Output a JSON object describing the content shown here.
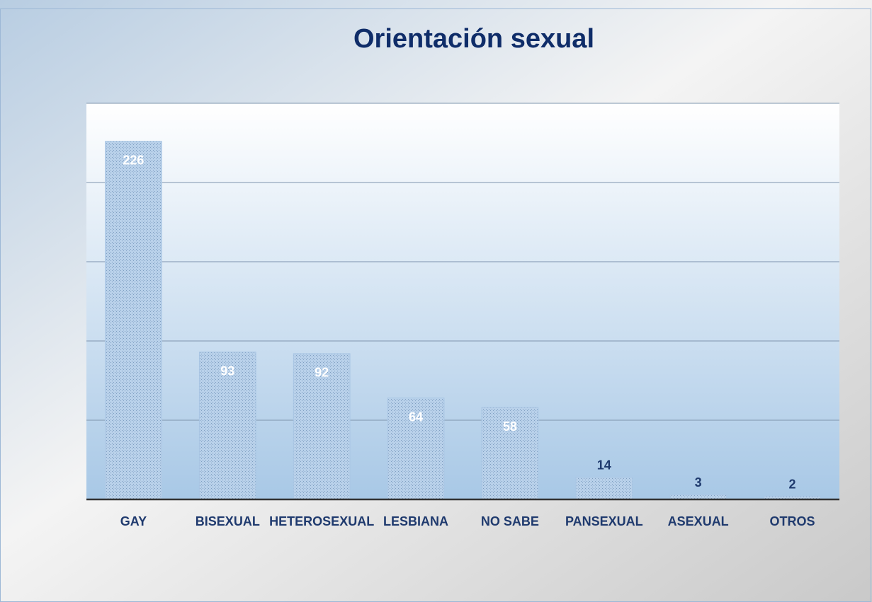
{
  "chart_data": {
    "type": "bar",
    "title": "Orientación sexual",
    "categories": [
      "GAY",
      "BISEXUAL",
      "HETEROSEXUAL",
      "LESBIANA",
      "NO SABE",
      "PANSEXUAL",
      "ASEXUAL",
      "OTROS"
    ],
    "values": [
      226,
      93,
      92,
      64,
      58,
      14,
      3,
      2
    ],
    "color": "#a9c6e4",
    "ylim": [
      0,
      250
    ],
    "yticks": [
      0,
      50,
      100,
      150,
      200,
      250
    ],
    "grid": true
  }
}
